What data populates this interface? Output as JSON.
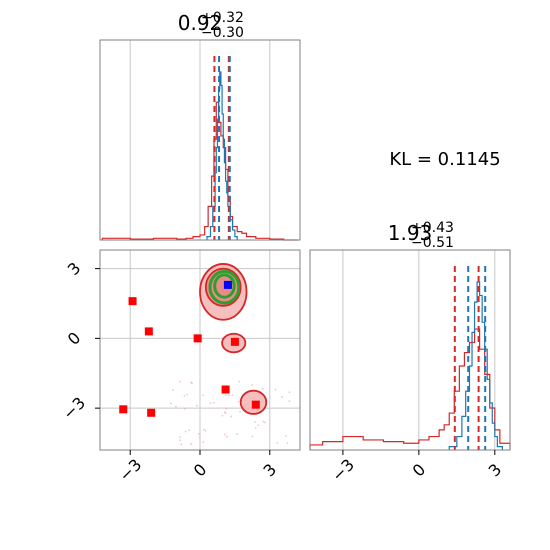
{
  "chart_data": [
    {
      "type": "histogram",
      "panel": "marginal-x",
      "title": {
        "median": "0.92",
        "plus": "+0.32",
        "minus": "−0.30"
      },
      "xlim": [
        -4.3,
        4.3
      ],
      "ticks": [
        -3,
        0,
        3
      ],
      "grid": true,
      "series": [
        {
          "color": "#d62728",
          "bin_edges": [
            -4.2,
            -3.0,
            -2.0,
            -1.0,
            -0.6,
            -0.3,
            0.0,
            0.2,
            0.35,
            0.5,
            0.6,
            0.7,
            0.8,
            0.9,
            1.0,
            1.1,
            1.2,
            1.3,
            1.4,
            1.6,
            1.8,
            2.0,
            2.4,
            3.0,
            3.6,
            4.2
          ],
          "heights": [
            0.01,
            0.005,
            0.01,
            0.005,
            0.01,
            0.02,
            0.03,
            0.08,
            0.2,
            0.38,
            0.6,
            0.82,
            0.7,
            0.62,
            0.55,
            0.42,
            0.26,
            0.14,
            0.08,
            0.05,
            0.04,
            0.02,
            0.01,
            0.005,
            0.0
          ]
        },
        {
          "color": "#1f77b4",
          "bin_edges": [
            0.3,
            0.45,
            0.55,
            0.65,
            0.7,
            0.75,
            0.8,
            0.85,
            0.9,
            0.95,
            1.0,
            1.05,
            1.1,
            1.15,
            1.2,
            1.3,
            1.4,
            1.5,
            1.6
          ],
          "heights": [
            0.02,
            0.08,
            0.2,
            0.4,
            0.55,
            0.72,
            0.9,
            1.0,
            0.92,
            0.75,
            0.6,
            0.46,
            0.35,
            0.28,
            0.2,
            0.12,
            0.06,
            0.02
          ]
        }
      ],
      "quantile_lines": [
        {
          "color": "#d62728",
          "x": 0.62
        },
        {
          "color": "#d62728",
          "x": 1.24
        },
        {
          "color": "#1f77b4",
          "x": 0.82
        },
        {
          "color": "#1f77b4",
          "x": 1.28
        }
      ]
    },
    {
      "type": "scatter",
      "panel": "joint",
      "xlim": [
        -4.3,
        4.3
      ],
      "ylim": [
        -4.8,
        3.8
      ],
      "xticks": [
        -3,
        0,
        3
      ],
      "yticks": [
        -3,
        0,
        3
      ],
      "grid": true,
      "markers": [
        {
          "x": -2.9,
          "y": 1.6,
          "color": "#ff0000"
        },
        {
          "x": -2.2,
          "y": 0.3,
          "color": "#ff0000"
        },
        {
          "x": -0.1,
          "y": 0.0,
          "color": "#ff0000"
        },
        {
          "x": 1.5,
          "y": -0.15,
          "color": "#ff0000"
        },
        {
          "x": 1.1,
          "y": -2.2,
          "color": "#ff0000"
        },
        {
          "x": 2.4,
          "y": -2.85,
          "color": "#ff0000"
        },
        {
          "x": -3.3,
          "y": -3.05,
          "color": "#ff0000"
        },
        {
          "x": -2.1,
          "y": -3.2,
          "color": "#ff0000"
        },
        {
          "x": 1.2,
          "y": 2.3,
          "color": "#0000ff"
        }
      ],
      "contours": [
        {
          "color": "#d62728",
          "level": "outer",
          "cx": 1.0,
          "cy": 2.0,
          "rx": 1.0,
          "ry": 1.2
        },
        {
          "color": "#d62728",
          "level": "inner",
          "cx": 1.0,
          "cy": 2.2,
          "rx": 0.75,
          "ry": 0.8
        },
        {
          "color": "#d62728",
          "level": "outer",
          "cx": 1.45,
          "cy": -0.2,
          "rx": 0.5,
          "ry": 0.4
        },
        {
          "color": "#d62728",
          "level": "outer",
          "cx": 2.3,
          "cy": -2.75,
          "rx": 0.55,
          "ry": 0.5
        },
        {
          "color": "#2ca02c",
          "level": "outer",
          "cx": 1.05,
          "cy": 2.2,
          "rx": 0.62,
          "ry": 0.68
        },
        {
          "color": "#2ca02c",
          "level": "inner",
          "cx": 1.05,
          "cy": 2.25,
          "rx": 0.42,
          "ry": 0.48
        }
      ]
    },
    {
      "type": "histogram",
      "panel": "marginal-y",
      "title": {
        "median": "1.93",
        "plus": "+0.43",
        "minus": "−0.51"
      },
      "xlim": [
        -4.3,
        3.6
      ],
      "ticks": [
        -3,
        0,
        3
      ],
      "grid": true,
      "series": [
        {
          "color": "#d62728",
          "bin_edges": [
            -4.3,
            -3.8,
            -3.0,
            -2.2,
            -1.4,
            -0.6,
            0.0,
            0.4,
            0.8,
            1.0,
            1.2,
            1.4,
            1.6,
            1.8,
            2.0,
            2.2,
            2.4,
            2.6,
            2.8,
            3.0,
            3.2,
            3.6
          ],
          "heights": [
            0.03,
            0.05,
            0.08,
            0.06,
            0.05,
            0.04,
            0.06,
            0.08,
            0.12,
            0.15,
            0.22,
            0.35,
            0.5,
            0.58,
            0.64,
            0.72,
            0.6,
            0.45,
            0.25,
            0.12,
            0.04
          ]
        },
        {
          "color": "#1f77b4",
          "bin_edges": [
            1.2,
            1.5,
            1.7,
            1.85,
            2.0,
            2.1,
            2.2,
            2.3,
            2.4,
            2.5,
            2.6,
            2.7,
            2.8,
            2.9,
            3.0,
            3.1,
            3.3
          ],
          "heights": [
            0.02,
            0.08,
            0.2,
            0.35,
            0.5,
            0.7,
            0.88,
            1.0,
            0.92,
            0.76,
            0.6,
            0.42,
            0.28,
            0.16,
            0.08,
            0.02
          ]
        }
      ],
      "quantile_lines": [
        {
          "color": "#d62728",
          "x": 1.42
        },
        {
          "color": "#d62728",
          "x": 2.36
        },
        {
          "color": "#1f77b4",
          "x": 1.95
        },
        {
          "color": "#1f77b4",
          "x": 2.62
        }
      ]
    }
  ],
  "annotations": {
    "kl_label": "KL = 0.1145"
  }
}
